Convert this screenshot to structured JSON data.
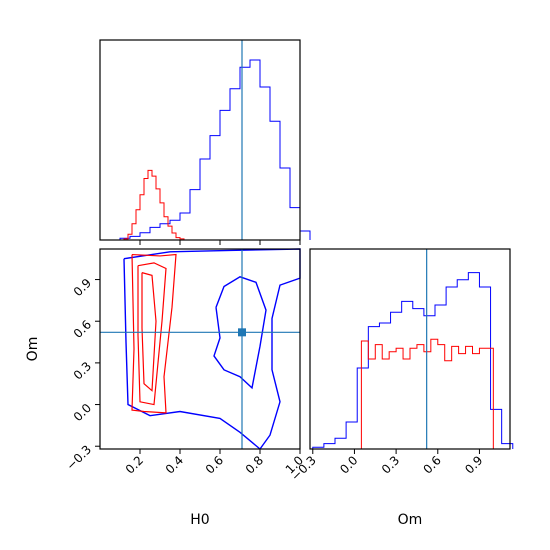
{
  "chart_data": {
    "type": "corner",
    "colors": {
      "blue": "#0000ff",
      "red": "#ff0000",
      "truth": "#1f77b4"
    },
    "params": [
      {
        "name": "H0",
        "range": [
          0.0,
          1.0
        ],
        "ticks": [
          0.2,
          0.4,
          0.6,
          0.8,
          1.0
        ],
        "tick_labels": [
          "0.2",
          "0.4",
          "0.6",
          "0.8",
          "1.0"
        ]
      },
      {
        "name": "Om",
        "range": [
          -0.32,
          1.12
        ],
        "ticks": [
          -0.3,
          0.0,
          0.3,
          0.6,
          0.9
        ],
        "tick_labels": [
          "−0.3",
          "0.0",
          "0.3",
          "0.6",
          "0.9"
        ]
      }
    ],
    "truth": {
      "H0": 0.71,
      "Om": 0.52
    },
    "xlabels": [
      "H0",
      "Om"
    ],
    "ylabels": [
      "Om"
    ],
    "hist_H0": {
      "blue": {
        "x": [
          0.1,
          0.15,
          0.2,
          0.25,
          0.3,
          0.35,
          0.4,
          0.45,
          0.5,
          0.55,
          0.6,
          0.65,
          0.7,
          0.75,
          0.8,
          0.85,
          0.9,
          0.95,
          1.0
        ],
        "y": [
          1,
          2,
          4,
          7,
          9,
          11,
          15,
          28,
          45,
          58,
          72,
          84,
          96,
          100,
          85,
          66,
          40,
          18,
          5
        ]
      },
      "red": {
        "x": [
          0.12,
          0.14,
          0.16,
          0.18,
          0.2,
          0.22,
          0.24,
          0.26,
          0.28,
          0.3,
          0.32,
          0.34,
          0.36,
          0.38,
          0.4
        ],
        "y": [
          1,
          5,
          14,
          26,
          39,
          53,
          60,
          55,
          44,
          32,
          20,
          12,
          6,
          2,
          1
        ]
      }
    },
    "hist_Om": {
      "blue": {
        "x": [
          -0.3,
          -0.22,
          -0.14,
          -0.06,
          0.02,
          0.1,
          0.18,
          0.26,
          0.34,
          0.42,
          0.5,
          0.58,
          0.66,
          0.74,
          0.82,
          0.9,
          0.98,
          1.06
        ],
        "y": [
          1,
          3,
          6,
          15,
          45,
          68,
          70,
          76,
          82,
          78,
          74,
          80,
          90,
          94,
          98,
          90,
          22,
          3
        ]
      },
      "red": {
        "x": [
          0.0,
          0.05,
          0.1,
          0.15,
          0.2,
          0.25,
          0.3,
          0.35,
          0.4,
          0.45,
          0.5,
          0.55,
          0.6,
          0.65,
          0.7,
          0.75,
          0.8,
          0.85,
          0.9,
          0.95,
          1.0
        ],
        "y": [
          0,
          60,
          50,
          58,
          50,
          54,
          56,
          50,
          56,
          58,
          54,
          61,
          58,
          49,
          57,
          53,
          57,
          53,
          56,
          56,
          0
        ]
      }
    },
    "contours_2d": {
      "blue": [
        {
          "level": "outer",
          "points": [
            [
              0.12,
              1.05
            ],
            [
              0.35,
              1.1
            ],
            [
              0.65,
              1.11
            ],
            [
              1.0,
              1.12
            ],
            [
              1.0,
              0.91
            ],
            [
              0.9,
              0.86
            ],
            [
              0.86,
              0.62
            ],
            [
              0.86,
              0.25
            ],
            [
              0.9,
              0.02
            ],
            [
              0.85,
              -0.22
            ],
            [
              0.8,
              -0.32
            ],
            [
              0.7,
              -0.2
            ],
            [
              0.6,
              -0.1
            ],
            [
              0.4,
              -0.05
            ],
            [
              0.25,
              -0.08
            ],
            [
              0.14,
              0.0
            ],
            [
              0.13,
              0.45
            ],
            [
              0.12,
              1.05
            ]
          ]
        },
        {
          "level": "inner",
          "points": [
            [
              0.58,
              0.7
            ],
            [
              0.62,
              0.85
            ],
            [
              0.7,
              0.92
            ],
            [
              0.78,
              0.88
            ],
            [
              0.83,
              0.68
            ],
            [
              0.8,
              0.42
            ],
            [
              0.76,
              0.12
            ],
            [
              0.7,
              0.2
            ],
            [
              0.62,
              0.25
            ],
            [
              0.57,
              0.35
            ],
            [
              0.6,
              0.48
            ],
            [
              0.58,
              0.7
            ]
          ]
        }
      ],
      "red": [
        {
          "level": "outer",
          "points": [
            [
              0.16,
              1.08
            ],
            [
              0.3,
              1.07
            ],
            [
              0.38,
              1.08
            ],
            [
              0.36,
              0.7
            ],
            [
              0.32,
              0.2
            ],
            [
              0.33,
              -0.06
            ],
            [
              0.22,
              -0.05
            ],
            [
              0.16,
              -0.04
            ],
            [
              0.17,
              0.4
            ],
            [
              0.16,
              1.08
            ]
          ]
        },
        {
          "level": "middle",
          "points": [
            [
              0.19,
              1.0
            ],
            [
              0.27,
              1.02
            ],
            [
              0.33,
              0.98
            ],
            [
              0.31,
              0.6
            ],
            [
              0.28,
              0.15
            ],
            [
              0.27,
              0.0
            ],
            [
              0.2,
              0.02
            ],
            [
              0.19,
              0.5
            ],
            [
              0.19,
              1.0
            ]
          ]
        },
        {
          "level": "inner",
          "points": [
            [
              0.21,
              0.95
            ],
            [
              0.26,
              0.93
            ],
            [
              0.28,
              0.6
            ],
            [
              0.26,
              0.1
            ],
            [
              0.22,
              0.15
            ],
            [
              0.21,
              0.55
            ],
            [
              0.21,
              0.95
            ]
          ]
        }
      ]
    }
  }
}
